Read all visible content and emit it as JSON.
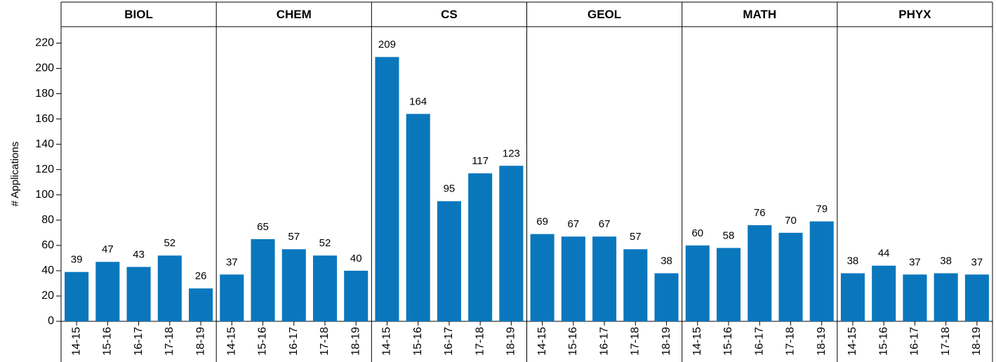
{
  "chart_data": {
    "type": "bar",
    "y_label": "# Applications",
    "color": "#0a77bd",
    "ylim": [
      0,
      233
    ],
    "yticks": [
      0,
      20,
      40,
      60,
      80,
      100,
      120,
      140,
      160,
      180,
      200,
      220
    ],
    "panels": [
      {
        "title": "BIOL",
        "categories": [
          "14-15",
          "15-16",
          "16-17",
          "17-18",
          "18-19"
        ],
        "values": [
          39,
          47,
          43,
          52,
          26
        ]
      },
      {
        "title": "CHEM",
        "categories": [
          "14-15",
          "15-16",
          "16-17",
          "17-18",
          "18-19"
        ],
        "values": [
          37,
          65,
          57,
          52,
          40
        ]
      },
      {
        "title": "CS",
        "categories": [
          "14-15",
          "15-16",
          "16-17",
          "17-18",
          "18-19"
        ],
        "values": [
          209,
          164,
          95,
          117,
          123
        ]
      },
      {
        "title": "GEOL",
        "categories": [
          "14-15",
          "15-16",
          "16-17",
          "17-18",
          "18-19"
        ],
        "values": [
          69,
          67,
          67,
          57,
          38
        ]
      },
      {
        "title": "MATH",
        "categories": [
          "14-15",
          "15-16",
          "16-17",
          "17-18",
          "18-19"
        ],
        "values": [
          60,
          58,
          76,
          70,
          79
        ]
      },
      {
        "title": "PHYX",
        "categories": [
          "14-15",
          "15-16",
          "16-17",
          "17-18",
          "18-19"
        ],
        "values": [
          38,
          44,
          37,
          38,
          37
        ]
      }
    ]
  }
}
